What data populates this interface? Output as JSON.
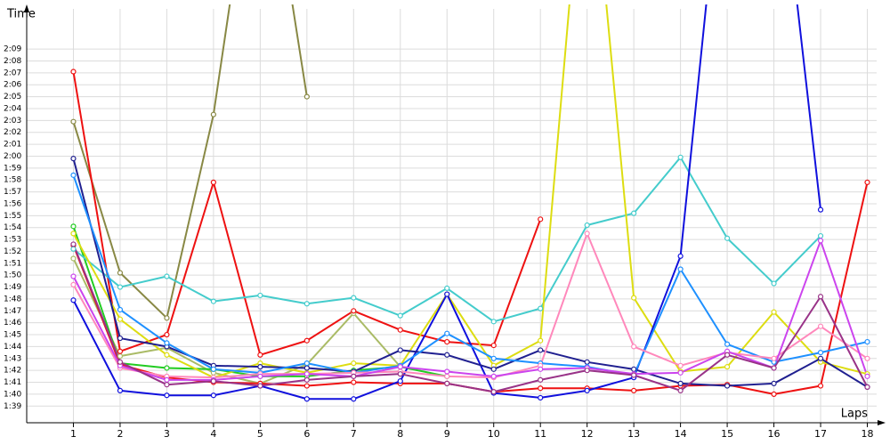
{
  "chart_data": {
    "type": "line",
    "x_label": "Laps",
    "y_label": "Time",
    "x": [
      1,
      2,
      3,
      4,
      5,
      6,
      7,
      8,
      9,
      10,
      11,
      12,
      13,
      14,
      15,
      16,
      17,
      18
    ],
    "xlim": [
      0,
      18.2
    ],
    "xticks": [
      1,
      2,
      3,
      4,
      5,
      6,
      7,
      8,
      9,
      10,
      11,
      12,
      13,
      14,
      15,
      16,
      17,
      18
    ],
    "ylim": [
      97.6,
      132
    ],
    "yticks": [
      {
        "value": 99,
        "label": "1:39"
      },
      {
        "value": 100,
        "label": "1:40"
      },
      {
        "value": 101,
        "label": "1:41"
      },
      {
        "value": 102,
        "label": "1:42"
      },
      {
        "value": 103,
        "label": "1:43"
      },
      {
        "value": 104,
        "label": "1:44"
      },
      {
        "value": 105,
        "label": "1:45"
      },
      {
        "value": 106,
        "label": "1:46"
      },
      {
        "value": 107,
        "label": "1:47"
      },
      {
        "value": 108,
        "label": "1:48"
      },
      {
        "value": 109,
        "label": "1:49"
      },
      {
        "value": 110,
        "label": "1:50"
      },
      {
        "value": 111,
        "label": "1:51"
      },
      {
        "value": 112,
        "label": "1:52"
      },
      {
        "value": 113,
        "label": "1:53"
      },
      {
        "value": 114,
        "label": "1:54"
      },
      {
        "value": 115,
        "label": "1:55"
      },
      {
        "value": 116,
        "label": "1:56"
      },
      {
        "value": 117,
        "label": "1:57"
      },
      {
        "value": 118,
        "label": "1:58"
      },
      {
        "value": 119,
        "label": "1:59"
      },
      {
        "value": 120,
        "label": "2:00"
      },
      {
        "value": 121,
        "label": "2:01"
      },
      {
        "value": 122,
        "label": "2:02"
      },
      {
        "value": 123,
        "label": "2:03"
      },
      {
        "value": 124,
        "label": "2:04"
      },
      {
        "value": 125,
        "label": "2:05"
      },
      {
        "value": 126,
        "label": "2:06"
      },
      {
        "value": 127,
        "label": "2:07"
      },
      {
        "value": 128,
        "label": "2:08"
      },
      {
        "value": 129,
        "label": "2:09"
      }
    ],
    "grid": true,
    "series": [
      {
        "color": "#aabb66",
        "values": [
          111.4,
          103.2,
          103.9,
          101.8,
          100.9,
          102.5,
          106.8,
          102.3,
          null,
          null,
          null,
          null,
          null,
          null,
          null,
          null,
          null,
          null
        ]
      },
      {
        "color": "#22cc22",
        "values": [
          114.1,
          102.6,
          102.2,
          102.1,
          101.5,
          101.5,
          102,
          102.3,
          101.5,
          null,
          null,
          null,
          null,
          null,
          null,
          null,
          null,
          null
        ]
      },
      {
        "color": "#888844",
        "values": [
          122.9,
          110.2,
          106.4,
          123.5,
          150,
          125,
          null,
          null,
          null,
          null,
          null,
          null,
          null,
          null,
          null,
          null,
          null,
          null
        ]
      },
      {
        "color": "#ee1111",
        "values": [
          127.1,
          103.6,
          105,
          117.8,
          103.3,
          104.5,
          107,
          105.4,
          104.4,
          104.1,
          114.7,
          null,
          null,
          null,
          null,
          null,
          null,
          null
        ]
      },
      {
        "color": "#ee1111",
        "values": [
          112.5,
          102.5,
          101.4,
          101,
          100.9,
          100.7,
          101,
          100.9,
          100.9,
          100.2,
          100.5,
          100.5,
          100.3,
          100.7,
          100.8,
          100,
          100.7,
          117.8
        ]
      },
      {
        "color": "#44cccc",
        "values": [
          112.2,
          109,
          109.9,
          107.8,
          108.3,
          107.6,
          108.1,
          106.6,
          108.9,
          106.1,
          107.2,
          114.2,
          115.2,
          119.9,
          113.1,
          109.3,
          113.3,
          null
        ]
      },
      {
        "color": "#dddd11",
        "values": [
          113.5,
          106.3,
          103.3,
          101.4,
          102.6,
          101.8,
          102.6,
          102.4,
          108.4,
          102.4,
          104.5,
          150,
          108.1,
          101.9,
          102.3,
          106.9,
          102.7,
          101.7
        ]
      },
      {
        "color": "#1010dd",
        "values": [
          107.9,
          100.3,
          99.9,
          99.9,
          100.7,
          99.6,
          99.6,
          101.1,
          108.4,
          100.1,
          99.7,
          100.3,
          101.4,
          111.6,
          150,
          150,
          115.5,
          null
        ]
      },
      {
        "color": "#202090",
        "values": [
          119.8,
          104.7,
          104,
          102.4,
          102.3,
          102.2,
          101.9,
          103.7,
          103.3,
          102.1,
          103.7,
          102.7,
          102.1,
          100.9,
          100.7,
          100.9,
          103,
          100.6
        ]
      },
      {
        "color": "#1e90ff",
        "values": [
          118.4,
          107.1,
          104.3,
          102.1,
          101.8,
          102.6,
          101.8,
          102.4,
          105.1,
          103,
          102.6,
          102.3,
          101.6,
          110.5,
          104.2,
          102.7,
          103.5,
          104.4
        ]
      },
      {
        "color": "#ff88bb",
        "values": [
          109.2,
          102.2,
          101.5,
          101.4,
          101.7,
          101.7,
          101.8,
          101.9,
          101.5,
          101.4,
          102.4,
          113.5,
          104,
          102.4,
          103.5,
          103,
          105.7,
          103
        ]
      },
      {
        "color": "#cc44ee",
        "values": [
          109.9,
          102.4,
          101.2,
          101.2,
          101.5,
          101.7,
          101.5,
          102.3,
          101.9,
          101.5,
          102.1,
          102.2,
          101.7,
          101.8,
          103.6,
          102.2,
          112.9,
          101.5
        ]
      },
      {
        "color": "#993388",
        "values": [
          112.6,
          102.7,
          100.8,
          101.1,
          100.7,
          101.2,
          101.5,
          101.7,
          100.9,
          100.2,
          101.2,
          102,
          101.6,
          100.3,
          103.3,
          102.2,
          108.2,
          100.6
        ]
      }
    ]
  }
}
